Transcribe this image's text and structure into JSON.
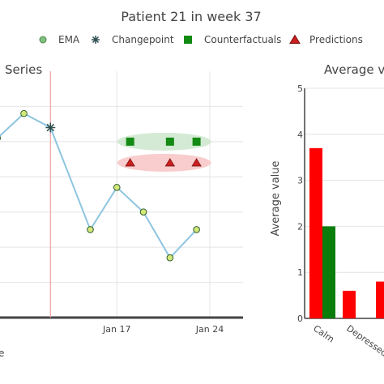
{
  "title": "Patient 21 in week 37",
  "legend": {
    "placement": "top",
    "items": [
      {
        "label": "EMA",
        "marker": "circle",
        "color": "#7fbf7f"
      },
      {
        "label": "Changepoint",
        "marker": "asterisk",
        "color": "#2f4f4f"
      },
      {
        "label": "Counterfactuals",
        "marker": "square",
        "color": "#138a13"
      },
      {
        "label": "Predictions",
        "marker": "triangle",
        "color": "#cc1f1f"
      }
    ]
  },
  "chart_data": [
    {
      "type": "line",
      "title": "Series",
      "x_tick_labels": [
        "Jan 17",
        "Jan 24"
      ],
      "x_ticks_day": [
        17,
        24
      ],
      "xlim_day": [
        8.2,
        26.5
      ],
      "ylim": [
        0.3,
        1.0
      ],
      "grid": true,
      "changepoint_day": 12.0,
      "series": [
        {
          "name": "EMA",
          "color": "#8ec5e0",
          "marker_color": "#d4e87a",
          "x_day": [
            8,
            10,
            12,
            15,
            17,
            19,
            21,
            23
          ],
          "values": [
            0.81,
            0.88,
            0.84,
            0.55,
            0.67,
            0.6,
            0.47,
            0.55
          ],
          "markers": [
            "circle",
            "circle",
            "asterisk",
            "circle",
            "circle",
            "circle",
            "circle",
            "circle"
          ]
        }
      ],
      "counterfactuals": [
        0.8,
        0.8,
        0.8
      ],
      "predictions": [
        0.74,
        0.74,
        0.74
      ],
      "marker_day": [
        18.0,
        21.0,
        23.0
      ]
    },
    {
      "type": "bar",
      "title": "Average value",
      "ylabel": "Average value",
      "ylim": [
        0,
        5
      ],
      "y_ticks": [
        0,
        1,
        2,
        3,
        4,
        5
      ],
      "grid": true,
      "categories": [
        "Calm",
        "Depressed",
        ""
      ],
      "series": [
        {
          "color": "#ff0000",
          "values": [
            3.7,
            0.6,
            0.8
          ]
        },
        {
          "color": "#0a7d0a",
          "values": [
            2.0,
            0,
            0
          ]
        }
      ]
    }
  ],
  "footer_text": "e"
}
